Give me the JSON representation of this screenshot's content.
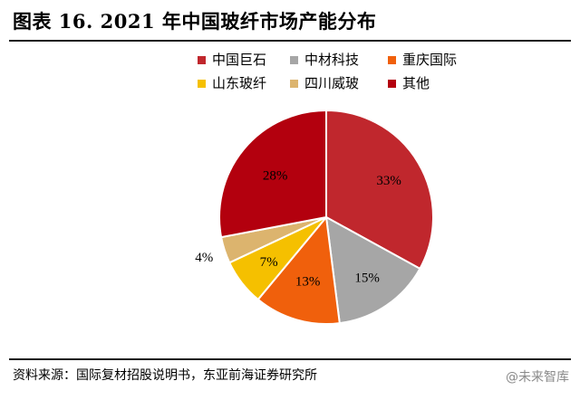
{
  "header": {
    "title": "图表 16. 2021 年中国玻纤市场产能分布"
  },
  "footer": {
    "source": "资料来源：国际复材招股说明书，东亚前海证券研究所",
    "watermark": "@未来智库"
  },
  "chart_data": {
    "type": "pie",
    "title": "2021 年中国玻纤市场产能分布",
    "unit": "%",
    "slices": [
      {
        "label": "中国巨石",
        "value": 33,
        "display": "33%",
        "color": "#c0272d"
      },
      {
        "label": "中材科技",
        "value": 15,
        "display": "15%",
        "color": "#a6a6a6"
      },
      {
        "label": "重庆国际",
        "value": 13,
        "display": "13%",
        "color": "#f0600c"
      },
      {
        "label": "山东玻纤",
        "value": 7,
        "display": "7%",
        "color": "#f5c000"
      },
      {
        "label": "四川威玻",
        "value": 4,
        "display": "4%",
        "color": "#dcb46e"
      },
      {
        "label": "其他",
        "value": 28,
        "display": "28%",
        "color": "#b3000e"
      }
    ],
    "start": "12 o'clock",
    "direction": "clockwise",
    "legend_position": "top"
  }
}
